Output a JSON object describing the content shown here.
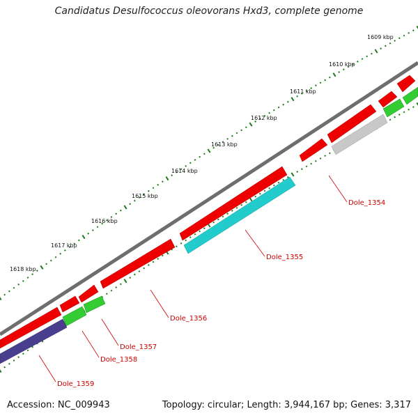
{
  "title": "Candidatus Desulfococcus oleovorans Hxd3, complete genome",
  "footer": {
    "accession": "Accession: NC_009943",
    "summary": "Topology: circular; Length: 3,944,167 bp; Genes: 3,317"
  },
  "colors": {
    "backbone": "#777777",
    "tick": "#1a7a1a",
    "forward_gene": "#ee0000",
    "label": "#cc0000",
    "leader": "#cc0000"
  },
  "scale": {
    "unit": "kbp",
    "ticks": [
      "1609 kbp",
      "1610 kbp",
      "1611 kbp",
      "1612 kbp",
      "1613 kbp",
      "1614 kbp",
      "1615 kbp",
      "1616 kbp",
      "1617 kbp",
      "1618 kbp"
    ]
  },
  "labeled_genes": [
    {
      "name": "Dole_1354",
      "color": "#c8c8c8"
    },
    {
      "name": "Dole_1355",
      "color": "#22cccc"
    },
    {
      "name": "Dole_1356",
      "color": "#ee0000"
    },
    {
      "name": "Dole_1357",
      "color": "#ee0000"
    },
    {
      "name": "Dole_1358",
      "color": "#33cc33"
    },
    {
      "name": "Dole_1359",
      "color": "#4a3f8f"
    }
  ]
}
